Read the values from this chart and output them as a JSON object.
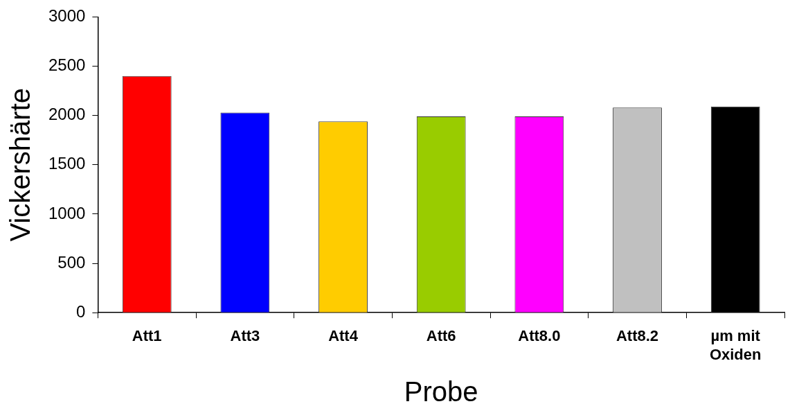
{
  "chart_data": {
    "type": "bar",
    "xlabel": "Probe",
    "ylabel": "Vickershärte",
    "categories": [
      "Att1",
      "Att3",
      "Att4",
      "Att6",
      "Att8.0",
      "Att8.2",
      "µm mit Oxiden"
    ],
    "values": [
      2400,
      2030,
      1940,
      1990,
      1990,
      2080,
      2090
    ],
    "colors": [
      "#ff0000",
      "#0000ff",
      "#ffcc00",
      "#99cc00",
      "#ff00ff",
      "#c0c0c0",
      "#000000"
    ],
    "ylim": [
      0,
      3000
    ],
    "yticks": [
      0,
      500,
      1000,
      1500,
      2000,
      2500,
      3000
    ],
    "grid": false,
    "legend": false
  }
}
